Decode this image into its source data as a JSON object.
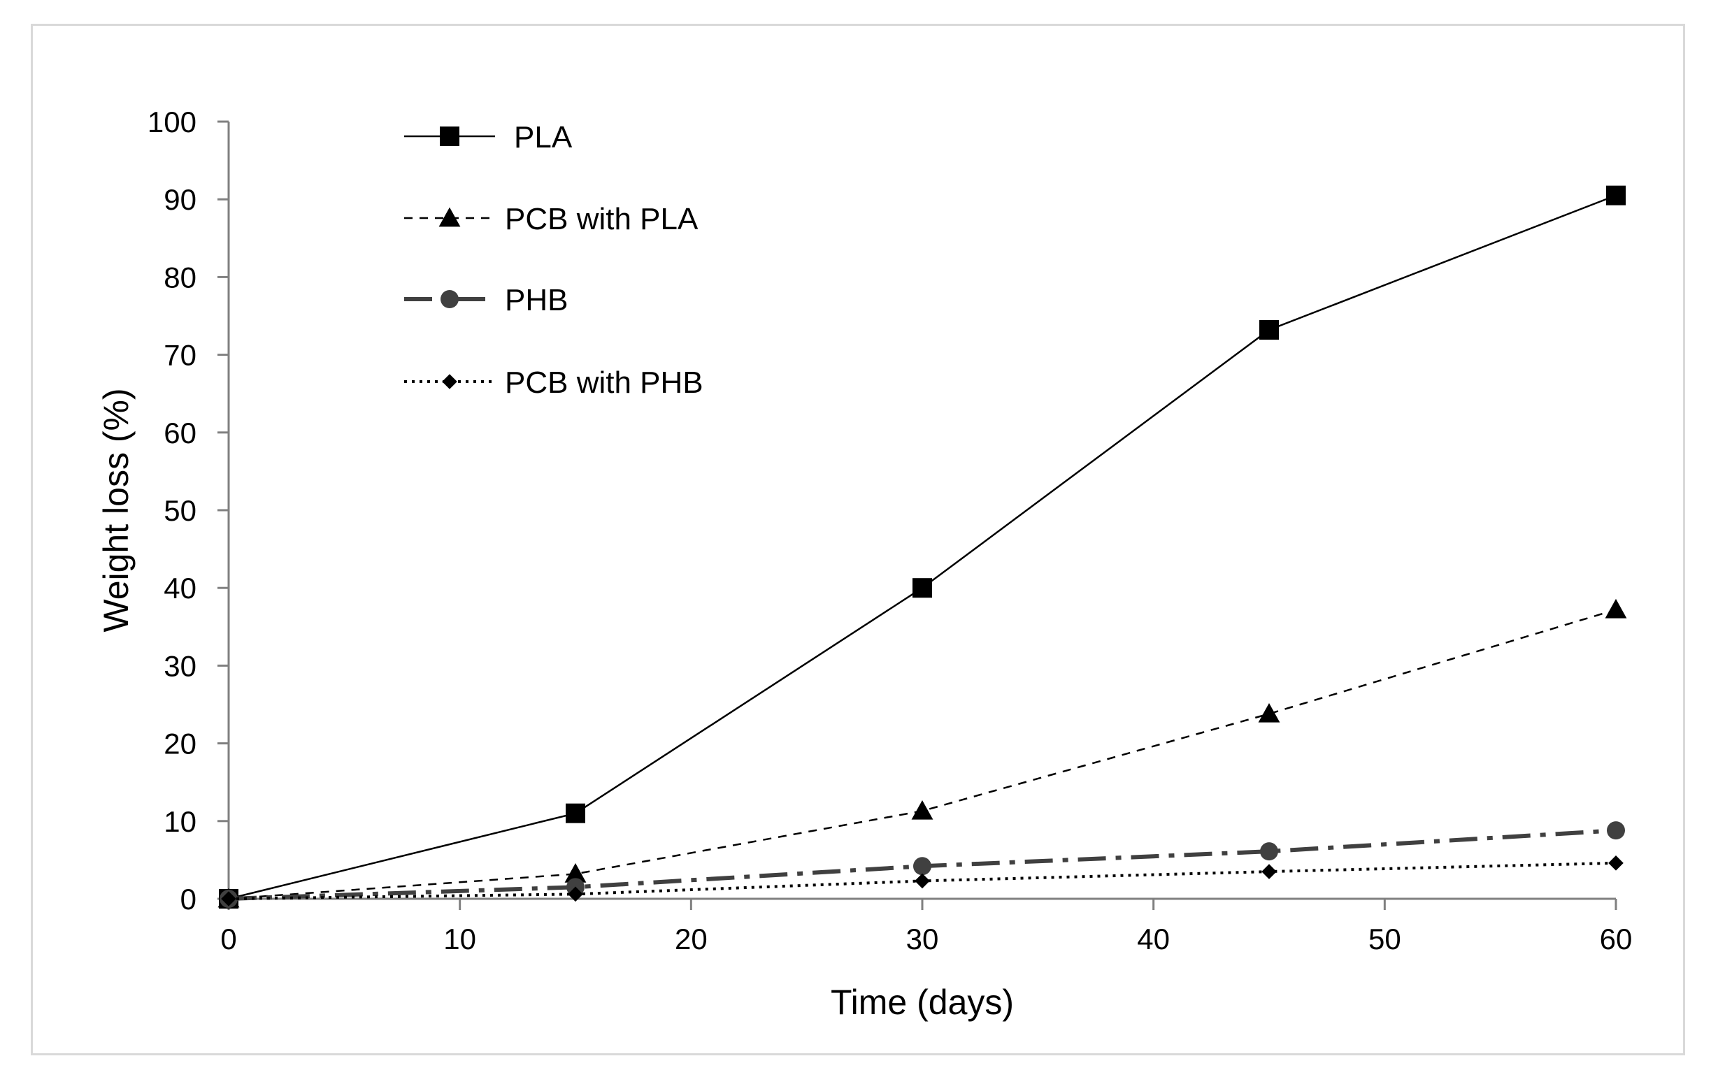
{
  "chart_data": {
    "type": "line",
    "title": "",
    "xlabel": "Time (days)",
    "ylabel": "Weight loss (%)",
    "xlim": [
      0,
      60
    ],
    "ylim": [
      0,
      100
    ],
    "xticks": [
      0,
      10,
      20,
      30,
      40,
      50,
      60
    ],
    "yticks": [
      0,
      10,
      20,
      30,
      40,
      50,
      60,
      70,
      80,
      90,
      100
    ],
    "grid": false,
    "legend_position": "top-left",
    "x": [
      0,
      15,
      30,
      45,
      60
    ],
    "series": [
      {
        "name": "PLA",
        "values": [
          0,
          11,
          40,
          73.2,
          90.5
        ],
        "line_style": "solid",
        "marker": "square",
        "color": "#000000"
      },
      {
        "name": "PCB with PLA",
        "values": [
          0,
          3.2,
          11.3,
          23.8,
          37.2
        ],
        "line_style": "dashed",
        "marker": "triangle",
        "color": "#000000"
      },
      {
        "name": "PHB",
        "values": [
          0,
          1.5,
          4.2,
          6.1,
          8.8
        ],
        "line_style": "dash-dot",
        "marker": "circle",
        "color": "#404040"
      },
      {
        "name": "PCB with PHB",
        "values": [
          0,
          0.6,
          2.3,
          3.5,
          4.6
        ],
        "line_style": "dotted",
        "marker": "diamond",
        "color": "#000000"
      }
    ]
  }
}
